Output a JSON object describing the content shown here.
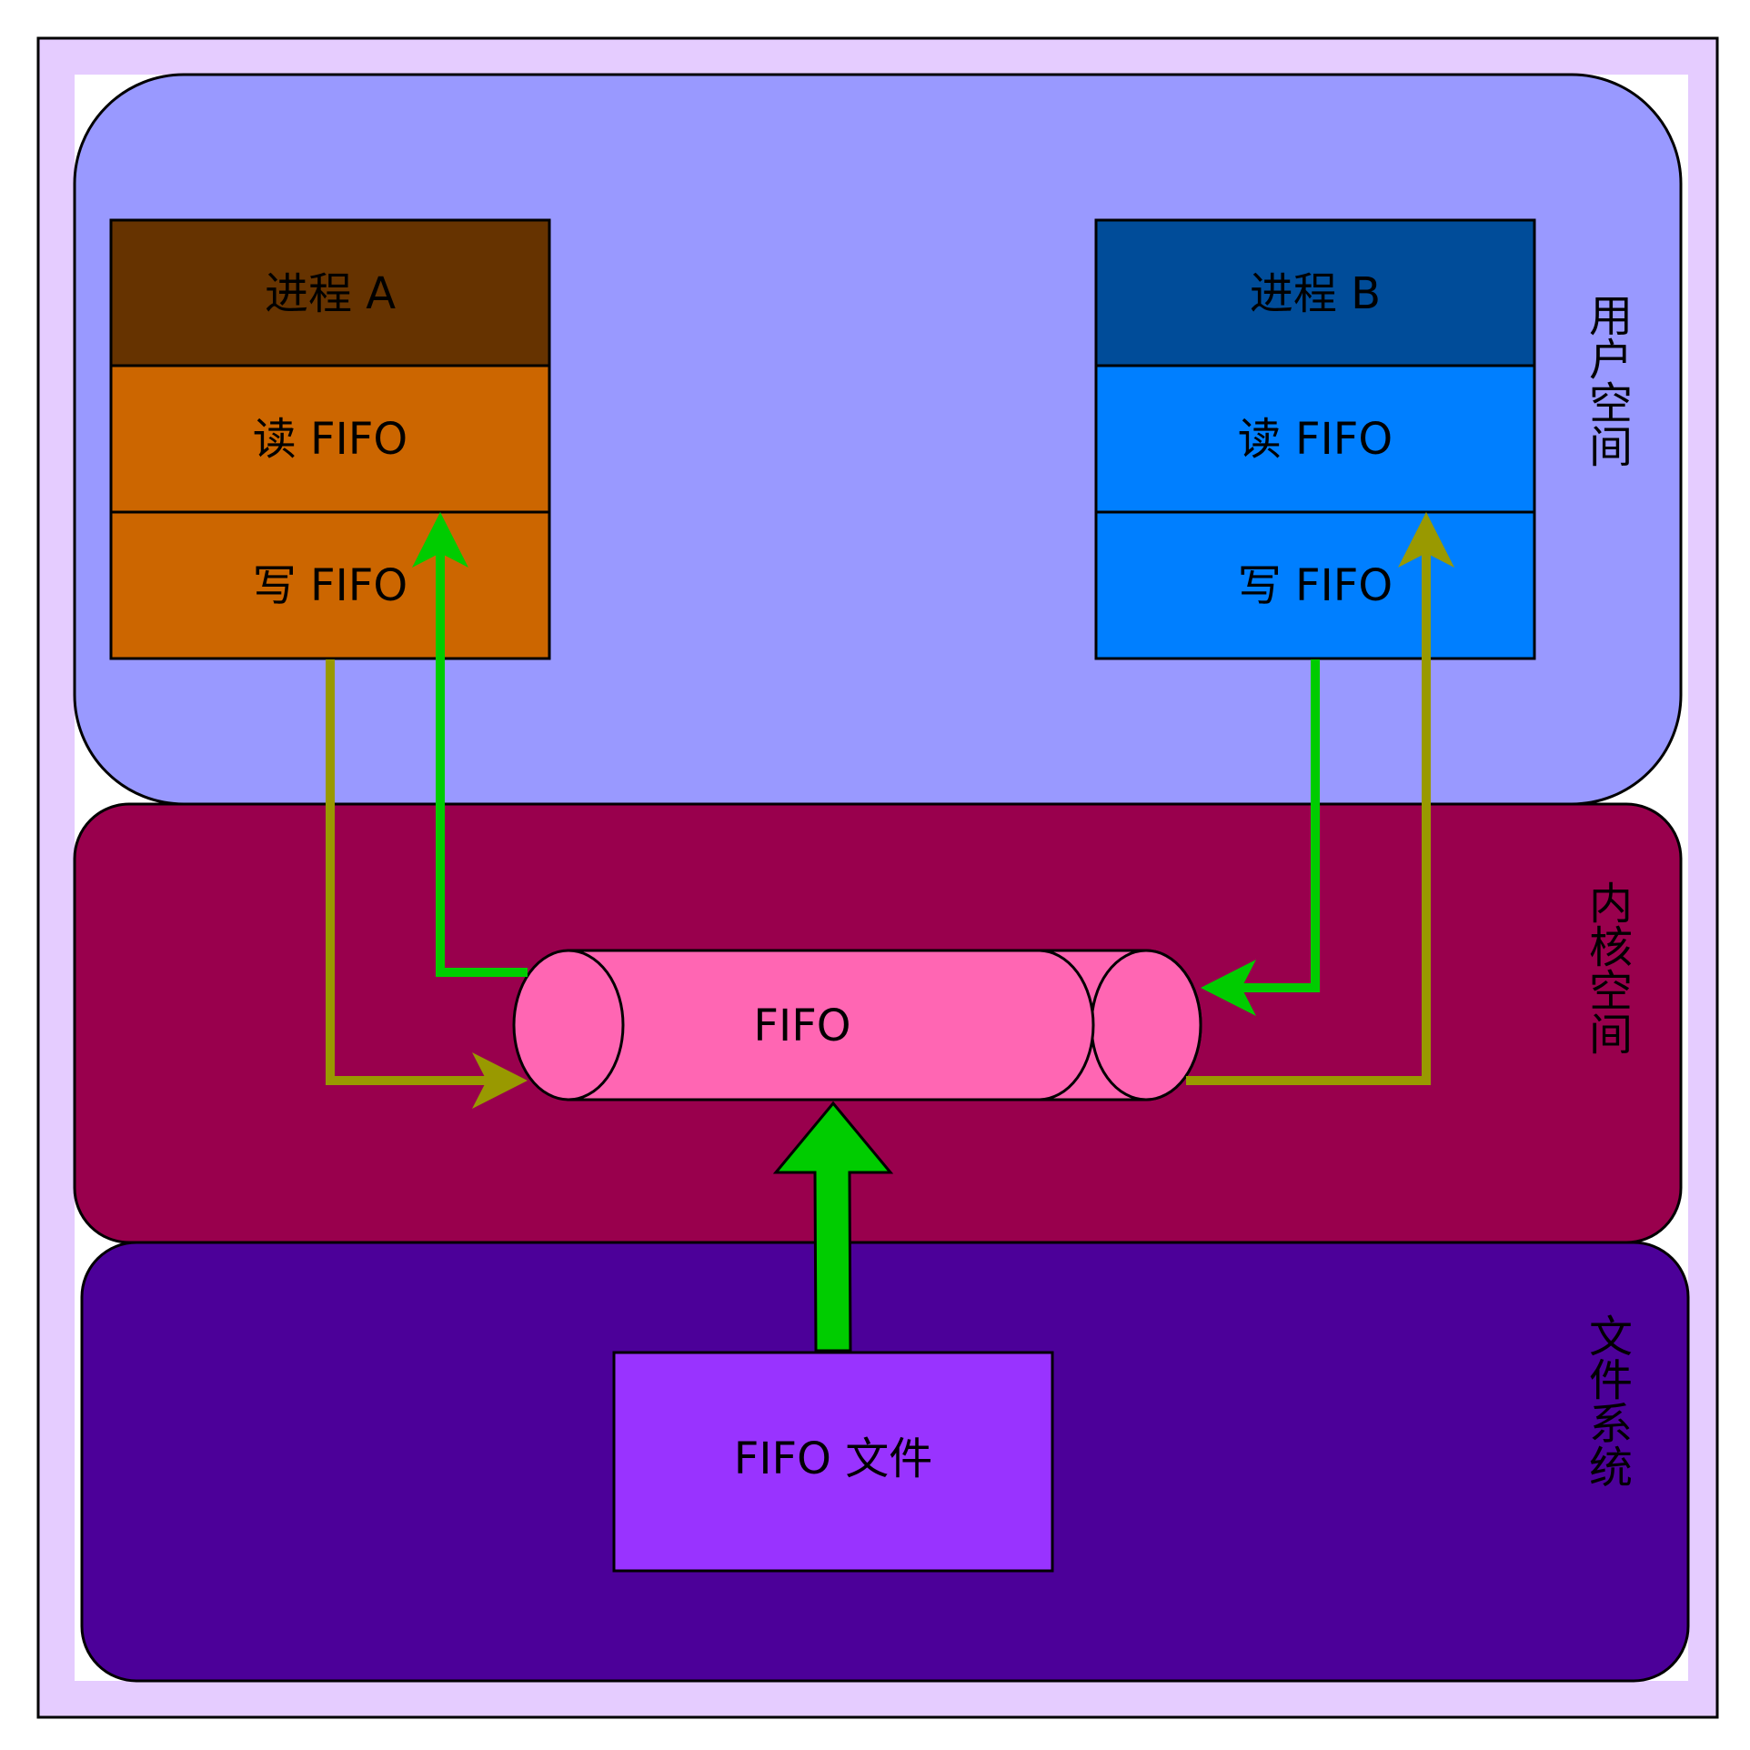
{
  "colors": {
    "frame": "#e5ccff",
    "user_space": "#9999ff",
    "kernel_space": "#99004d",
    "file_system": "#4c0099",
    "process_a_title": "#663300",
    "process_a_body": "#cc6600",
    "process_b_title": "#004c99",
    "process_b_body": "#007fff",
    "fifo_pipe": "#ff66b3",
    "fifo_file": "#9933ff",
    "arrow_green": "#00cc00",
    "arrow_olive": "#999900"
  },
  "regions": {
    "user_space": "用户空间",
    "kernel_space": "内核空间",
    "file_system": "文件系统"
  },
  "process_a": {
    "title": "进程 A",
    "read": "读 FIFO",
    "write": "写 FIFO"
  },
  "process_b": {
    "title": "进程 B",
    "read": "读 FIFO",
    "write": "写 FIFO"
  },
  "fifo": {
    "label": "FIFO"
  },
  "fifo_file": {
    "label": "FIFO 文件"
  }
}
